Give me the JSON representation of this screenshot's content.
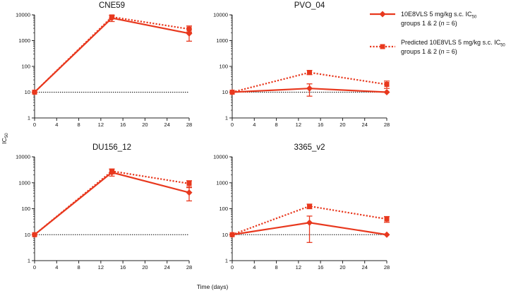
{
  "colors": {
    "series": "#e8381e",
    "axis": "#222222",
    "reference": "#000000"
  },
  "figure": {
    "xlabel": "Time (days)",
    "ylabel": "IC",
    "ylabel_sub": "50"
  },
  "legend": [
    {
      "line1_pre": "10E8VLS 5 mg/kg s.c. IC",
      "line1_sub": "50",
      "line2_pre": "groups 1 & 2 (",
      "line2_n": "n",
      "line2_post": " = 6)",
      "style": "solid",
      "marker": "diamond"
    },
    {
      "line1_pre": "Predicted 10E8VLS 5 mg/kg s.c. IC",
      "line1_sub": "50",
      "line2_pre": "groups 1 & 2 (",
      "line2_n": "n",
      "line2_post": " = 6)",
      "style": "dotted",
      "marker": "square"
    }
  ],
  "chart_data": [
    {
      "type": "line",
      "title": "CNE59",
      "yscale": "log",
      "ylim": [
        1,
        10000
      ],
      "xlim": [
        0,
        28
      ],
      "xticks": [
        0,
        4,
        8,
        12,
        16,
        20,
        24,
        28
      ],
      "yticks": [
        1,
        10,
        100,
        1000,
        10000
      ],
      "ytick_labels": [
        "1",
        "10",
        "100",
        "1000",
        "10000"
      ],
      "reference_line": 10,
      "series": [
        {
          "name": "10E8VLS 5 mg/kg s.c. IC50 groups 1 & 2 (n = 6)",
          "style": "solid",
          "marker": "diamond",
          "x": [
            0,
            14,
            28
          ],
          "y": [
            10,
            7500,
            1900
          ],
          "err_low": [
            null,
            5500,
            950
          ],
          "err_high": [
            null,
            9000,
            2800
          ]
        },
        {
          "name": "Predicted 10E8VLS 5 mg/kg s.c. IC50 groups 1 & 2 (n = 6)",
          "style": "dotted",
          "marker": "square",
          "x": [
            0,
            14,
            28
          ],
          "y": [
            10,
            8300,
            2800
          ],
          "err_low": [
            null,
            7000,
            2100
          ],
          "err_high": [
            null,
            9800,
            3700
          ]
        }
      ]
    },
    {
      "type": "line",
      "title": "PVO_04",
      "yscale": "log",
      "ylim": [
        1,
        10000
      ],
      "xlim": [
        0,
        28
      ],
      "xticks": [
        0,
        4,
        8,
        12,
        16,
        20,
        24,
        28
      ],
      "yticks": [
        1,
        10,
        100,
        1000,
        10000
      ],
      "ytick_labels": [
        "1",
        "10",
        "100",
        "1000",
        "10000"
      ],
      "reference_line": 10,
      "series": [
        {
          "name": "10E8VLS 5 mg/kg s.c. IC50 groups 1 & 2 (n = 6)",
          "style": "solid",
          "marker": "diamond",
          "x": [
            0,
            14,
            28
          ],
          "y": [
            10,
            14,
            10
          ],
          "err_low": [
            null,
            7,
            null
          ],
          "err_high": [
            null,
            21,
            null
          ]
        },
        {
          "name": "Predicted 10E8VLS 5 mg/kg s.c. IC50 groups 1 & 2 (n = 6)",
          "style": "dotted",
          "marker": "square",
          "x": [
            0,
            14,
            28
          ],
          "y": [
            10,
            58,
            20
          ],
          "err_low": [
            null,
            48,
            14
          ],
          "err_high": [
            null,
            70,
            27
          ]
        }
      ]
    },
    {
      "type": "line",
      "title": "DU156_12",
      "yscale": "log",
      "ylim": [
        1,
        10000
      ],
      "xlim": [
        0,
        28
      ],
      "xticks": [
        0,
        4,
        8,
        12,
        16,
        20,
        24,
        28
      ],
      "yticks": [
        1,
        10,
        100,
        1000,
        10000
      ],
      "ytick_labels": [
        "1",
        "10",
        "100",
        "1000",
        "10000"
      ],
      "reference_line": 10,
      "series": [
        {
          "name": "10E8VLS 5 mg/kg s.c. IC50 groups 1 & 2 (n = 6)",
          "style": "solid",
          "marker": "diamond",
          "x": [
            0,
            14,
            28
          ],
          "y": [
            10,
            2500,
            420
          ],
          "err_low": [
            null,
            1800,
            200
          ],
          "err_high": [
            null,
            3300,
            680
          ]
        },
        {
          "name": "Predicted 10E8VLS 5 mg/kg s.c. IC50 groups 1 & 2 (n = 6)",
          "style": "dotted",
          "marker": "square",
          "x": [
            0,
            14,
            28
          ],
          "y": [
            10,
            2800,
            930
          ],
          "err_low": [
            null,
            2200,
            650
          ],
          "err_high": [
            null,
            3400,
            1200
          ]
        }
      ]
    },
    {
      "type": "line",
      "title": "3365_v2",
      "yscale": "log",
      "ylim": [
        1,
        10000
      ],
      "xlim": [
        0,
        28
      ],
      "xticks": [
        0,
        4,
        8,
        12,
        16,
        20,
        24,
        28
      ],
      "yticks": [
        1,
        10,
        100,
        1000,
        10000
      ],
      "ytick_labels": [
        "1",
        "10",
        "100",
        "1000",
        "10000"
      ],
      "reference_line": 10,
      "series": [
        {
          "name": "10E8VLS 5 mg/kg s.c. IC50 groups 1 & 2 (n = 6)",
          "style": "solid",
          "marker": "diamond",
          "x": [
            0,
            14,
            28
          ],
          "y": [
            10,
            29,
            10
          ],
          "err_low": [
            null,
            5,
            null
          ],
          "err_high": [
            null,
            52,
            null
          ]
        },
        {
          "name": "Predicted 10E8VLS 5 mg/kg s.c. IC50 groups 1 & 2 (n = 6)",
          "style": "dotted",
          "marker": "square",
          "x": [
            0,
            14,
            28
          ],
          "y": [
            10,
            125,
            40
          ],
          "err_low": [
            null,
            100,
            30
          ],
          "err_high": [
            null,
            150,
            50
          ]
        }
      ]
    }
  ]
}
